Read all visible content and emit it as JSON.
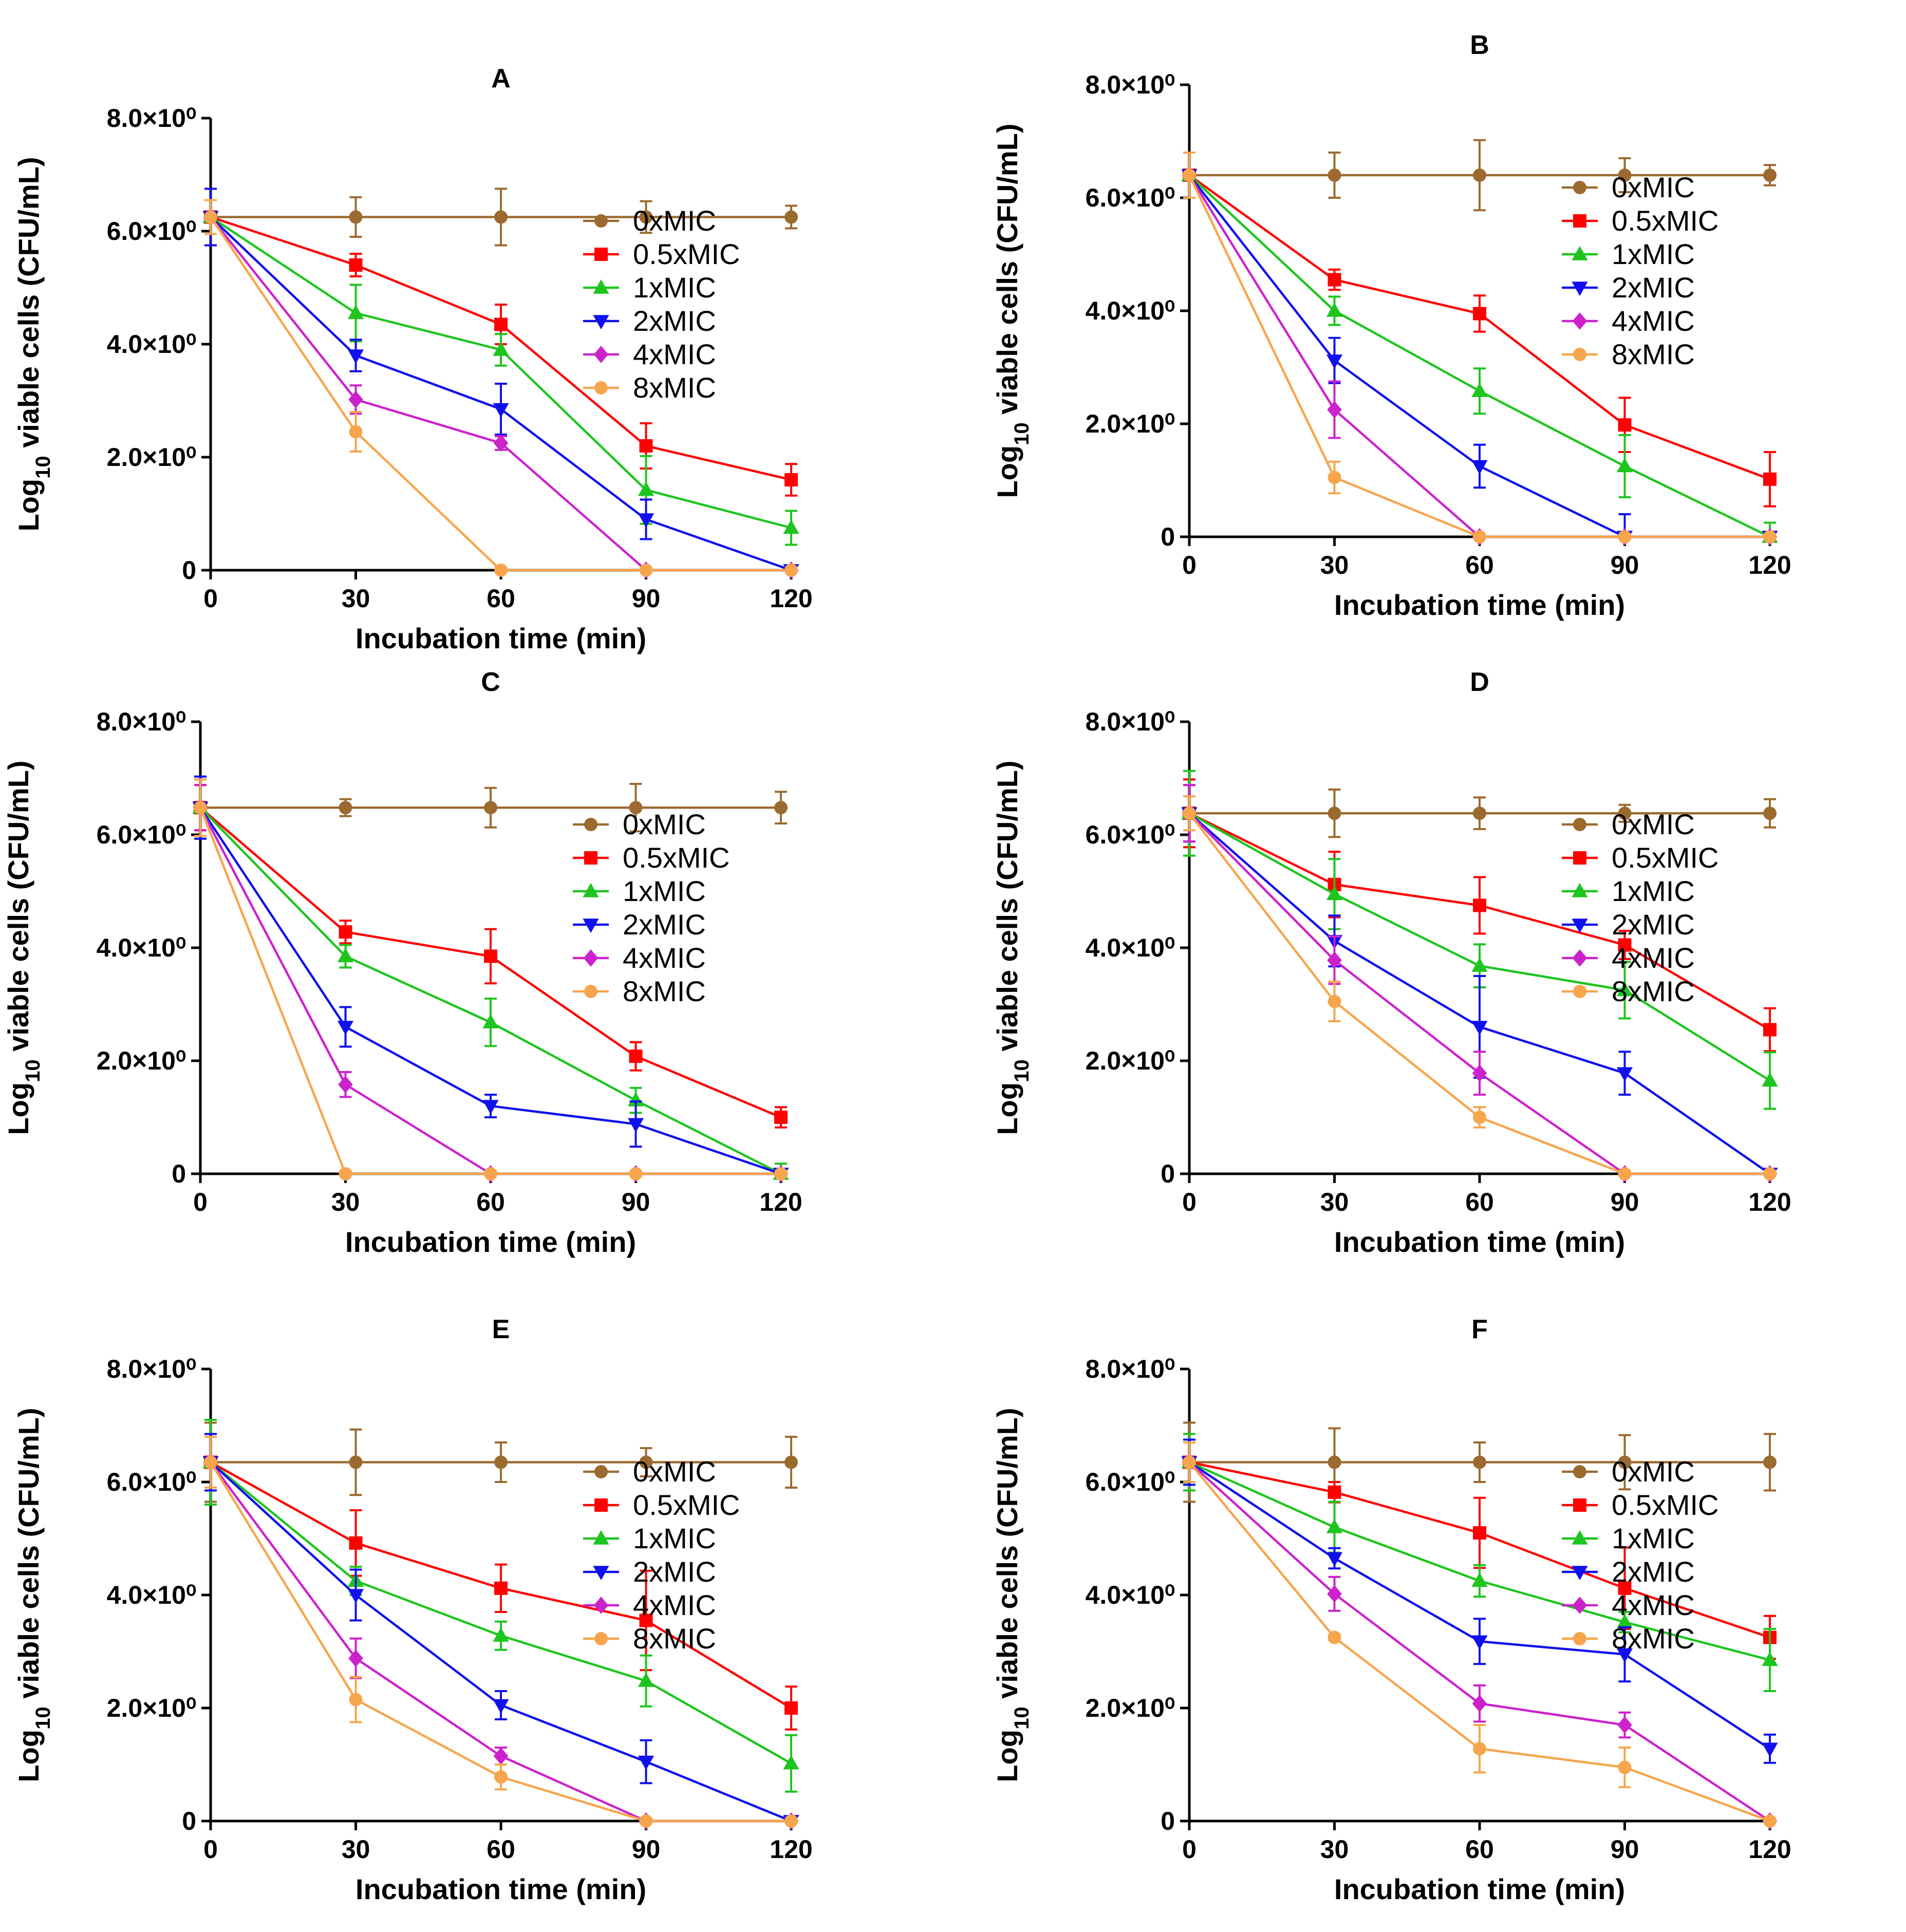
{
  "figure": {
    "background": "#ffffff"
  },
  "series_colors": {
    "0xMIC": "#9b6a2f",
    "0.5xMIC": "#ff0000",
    "1xMIC": "#1ec51e",
    "2xMIC": "#1010ee",
    "4xMIC": "#cc22cc",
    "8xMIC": "#f7a54d"
  },
  "series_markers": {
    "0xMIC": "circle",
    "0.5xMIC": "square",
    "1xMIC": "triangle-up",
    "2xMIC": "triangle-down",
    "4xMIC": "diamond",
    "8xMIC": "circle"
  },
  "chart_data": [
    {
      "type": "line",
      "title": "A",
      "xlabel": "Incubation time (min)",
      "ylabel_base": "Log",
      "ylabel_sub": "10",
      "ylabel_rest": " viable cells (CFU/mL)",
      "x": [
        0,
        30,
        60,
        90,
        120
      ],
      "x_ticks": [
        "0",
        "30",
        "60",
        "90",
        "120"
      ],
      "y_ticks": [
        {
          "value": 0,
          "label": "0"
        },
        {
          "value": 2,
          "label": "2.0×10⁰"
        },
        {
          "value": 4,
          "label": "4.0×10⁰"
        },
        {
          "value": 6,
          "label": "6.0×10⁰"
        },
        {
          "value": 8,
          "label": "8.0×10⁰"
        }
      ],
      "xlim": [
        0,
        120
      ],
      "ylim": [
        0,
        8
      ],
      "legend": "right",
      "series": [
        {
          "name": "0xMIC",
          "values": [
            6.25,
            6.25,
            6.25,
            6.25,
            6.25
          ],
          "errors": [
            0.5,
            0.35,
            0.5,
            0.28,
            0.2
          ]
        },
        {
          "name": "0.5xMIC",
          "values": [
            6.25,
            5.4,
            4.35,
            2.2,
            1.6
          ],
          "errors": [
            0.5,
            0.2,
            0.35,
            0.4,
            0.28
          ]
        },
        {
          "name": "1xMIC",
          "values": [
            6.25,
            4.55,
            3.9,
            1.42,
            0.75
          ],
          "errors": [
            0.5,
            0.5,
            0.28,
            0.6,
            0.3
          ]
        },
        {
          "name": "2xMIC",
          "values": [
            6.25,
            3.8,
            2.85,
            0.9,
            0.0
          ],
          "errors": [
            0.5,
            0.28,
            0.45,
            0.35,
            0.05
          ]
        },
        {
          "name": "4xMIC",
          "values": [
            6.25,
            3.02,
            2.25,
            0.0,
            0.0
          ],
          "errors": [
            0.3,
            0.25,
            0.12,
            0.05,
            0.05
          ]
        },
        {
          "name": "8xMIC",
          "values": [
            6.25,
            2.45,
            0.0,
            0.0,
            0.0
          ],
          "errors": [
            0.3,
            0.35,
            0.05,
            0.05,
            0.05
          ]
        }
      ]
    },
    {
      "type": "line",
      "title": "B",
      "xlabel": "Incubation time (min)",
      "ylabel_base": "Log",
      "ylabel_sub": "10",
      "ylabel_rest": " viable cells (CFU/mL)",
      "x": [
        0,
        30,
        60,
        90,
        120
      ],
      "x_ticks": [
        "0",
        "30",
        "60",
        "90",
        "120"
      ],
      "y_ticks": [
        {
          "value": 0,
          "label": "0"
        },
        {
          "value": 2,
          "label": "2.0×10⁰"
        },
        {
          "value": 4,
          "label": "4.0×10⁰"
        },
        {
          "value": 6,
          "label": "6.0×10⁰"
        },
        {
          "value": 8,
          "label": "8.0×10⁰"
        }
      ],
      "xlim": [
        0,
        120
      ],
      "ylim": [
        0,
        8
      ],
      "legend": "right",
      "series": [
        {
          "name": "0xMIC",
          "values": [
            6.4,
            6.4,
            6.4,
            6.4,
            6.4
          ],
          "errors": [
            0.4,
            0.4,
            0.62,
            0.3,
            0.18
          ]
        },
        {
          "name": "0.5xMIC",
          "values": [
            6.4,
            4.55,
            3.95,
            1.98,
            1.02
          ],
          "errors": [
            0.4,
            0.18,
            0.32,
            0.48,
            0.48
          ]
        },
        {
          "name": "1xMIC",
          "values": [
            6.4,
            4.0,
            2.58,
            1.25,
            0.0
          ],
          "errors": [
            0.4,
            0.25,
            0.4,
            0.55,
            0.25
          ]
        },
        {
          "name": "2xMIC",
          "values": [
            6.4,
            3.12,
            1.25,
            0.0,
            0.0
          ],
          "errors": [
            0.4,
            0.4,
            0.38,
            0.4,
            0.05
          ]
        },
        {
          "name": "4xMIC",
          "values": [
            6.4,
            2.25,
            0.0,
            0.0,
            0.0
          ],
          "errors": [
            0.4,
            0.5,
            0.05,
            0.05,
            0.05
          ]
        },
        {
          "name": "8xMIC",
          "values": [
            6.4,
            1.05,
            0.0,
            0.0,
            0.0
          ],
          "errors": [
            0.4,
            0.28,
            0.05,
            0.05,
            0.05
          ]
        }
      ]
    },
    {
      "type": "line",
      "title": "C",
      "xlabel": "Incubation time (min)",
      "ylabel_base": "Log",
      "ylabel_sub": "10",
      "ylabel_rest": " viable cells (CFU/mL)",
      "x": [
        0,
        30,
        60,
        90,
        120
      ],
      "x_ticks": [
        "0",
        "30",
        "60",
        "90",
        "120"
      ],
      "y_ticks": [
        {
          "value": 0,
          "label": "0"
        },
        {
          "value": 2,
          "label": "2.0×10⁰"
        },
        {
          "value": 4,
          "label": "4.0×10⁰"
        },
        {
          "value": 6,
          "label": "6.0×10⁰"
        },
        {
          "value": 8,
          "label": "8.0×10⁰"
        }
      ],
      "xlim": [
        0,
        120
      ],
      "ylim": [
        0,
        8
      ],
      "legend": "right",
      "series": [
        {
          "name": "0xMIC",
          "values": [
            6.48,
            6.48,
            6.48,
            6.48,
            6.48
          ],
          "errors": [
            0.4,
            0.15,
            0.35,
            0.42,
            0.28
          ]
        },
        {
          "name": "0.5xMIC",
          "values": [
            6.48,
            4.28,
            3.85,
            2.08,
            1.0
          ],
          "errors": [
            0.4,
            0.2,
            0.48,
            0.25,
            0.18
          ]
        },
        {
          "name": "1xMIC",
          "values": [
            6.48,
            3.85,
            2.68,
            1.3,
            0.0
          ],
          "errors": [
            0.55,
            0.2,
            0.42,
            0.22,
            0.18
          ]
        },
        {
          "name": "2xMIC",
          "values": [
            6.48,
            2.6,
            1.2,
            0.88,
            0.0
          ],
          "errors": [
            0.55,
            0.35,
            0.2,
            0.4,
            0.05
          ]
        },
        {
          "name": "4xMIC",
          "values": [
            6.48,
            1.58,
            0.0,
            0.0,
            0.0
          ],
          "errors": [
            0.4,
            0.22,
            0.05,
            0.05,
            0.05
          ]
        },
        {
          "name": "8xMIC",
          "values": [
            6.48,
            0.0,
            0.0,
            0.0,
            0.0
          ],
          "errors": [
            0.5,
            0.05,
            0.05,
            0.05,
            0.05
          ]
        }
      ]
    },
    {
      "type": "line",
      "title": "D",
      "xlabel": "Incubation time (min)",
      "ylabel_base": "Log",
      "ylabel_sub": "10",
      "ylabel_rest": " viable cells (CFU/mL)",
      "x": [
        0,
        30,
        60,
        90,
        120
      ],
      "x_ticks": [
        "0",
        "30",
        "60",
        "90",
        "120"
      ],
      "y_ticks": [
        {
          "value": 0,
          "label": "0"
        },
        {
          "value": 2,
          "label": "2.0×10⁰"
        },
        {
          "value": 4,
          "label": "4.0×10⁰"
        },
        {
          "value": 6,
          "label": "6.0×10⁰"
        },
        {
          "value": 8,
          "label": "8.0×10⁰"
        }
      ],
      "xlim": [
        0,
        120
      ],
      "ylim": [
        0,
        8
      ],
      "legend": "right",
      "series": [
        {
          "name": "0xMIC",
          "values": [
            6.38,
            6.38,
            6.38,
            6.38,
            6.38
          ],
          "errors": [
            0.6,
            0.42,
            0.28,
            0.15,
            0.25
          ]
        },
        {
          "name": "0.5xMIC",
          "values": [
            6.38,
            5.12,
            4.75,
            4.05,
            2.55
          ],
          "errors": [
            0.6,
            0.58,
            0.5,
            0.25,
            0.38
          ]
        },
        {
          "name": "1xMIC",
          "values": [
            6.38,
            4.95,
            3.68,
            3.25,
            1.65
          ],
          "errors": [
            0.75,
            0.62,
            0.38,
            0.5,
            0.5
          ]
        },
        {
          "name": "2xMIC",
          "values": [
            6.38,
            4.12,
            2.6,
            1.78,
            0.0
          ],
          "errors": [
            0.5,
            0.45,
            0.9,
            0.38,
            0.05
          ]
        },
        {
          "name": "4xMIC",
          "values": [
            6.38,
            3.78,
            1.78,
            0.0,
            0.0
          ],
          "errors": [
            0.5,
            0.42,
            0.38,
            0.05,
            0.05
          ]
        },
        {
          "name": "8xMIC",
          "values": [
            6.38,
            3.05,
            1.0,
            0.0,
            0.0
          ],
          "errors": [
            0.3,
            0.35,
            0.18,
            0.05,
            0.05
          ]
        }
      ]
    },
    {
      "type": "line",
      "title": "E",
      "xlabel": "Incubation time (min)",
      "ylabel_base": "Log",
      "ylabel_sub": "10",
      "ylabel_rest": " viable cells (CFU/mL)",
      "x": [
        0,
        30,
        60,
        90,
        120
      ],
      "x_ticks": [
        "0",
        "30",
        "60",
        "90",
        "120"
      ],
      "y_ticks": [
        {
          "value": 0,
          "label": "0"
        },
        {
          "value": 2,
          "label": "2.0×10⁰"
        },
        {
          "value": 4,
          "label": "4.0×10⁰"
        },
        {
          "value": 6,
          "label": "6.0×10⁰"
        },
        {
          "value": 8,
          "label": "8.0×10⁰"
        }
      ],
      "xlim": [
        0,
        120
      ],
      "ylim": [
        0,
        8
      ],
      "legend": "right",
      "series": [
        {
          "name": "0xMIC",
          "values": [
            6.35,
            6.35,
            6.35,
            6.35,
            6.35
          ],
          "errors": [
            0.7,
            0.58,
            0.35,
            0.25,
            0.45
          ]
        },
        {
          "name": "0.5xMIC",
          "values": [
            6.35,
            4.92,
            4.12,
            3.55,
            2.0
          ],
          "errors": [
            0.5,
            0.58,
            0.42,
            0.88,
            0.38
          ]
        },
        {
          "name": "1xMIC",
          "values": [
            6.35,
            4.25,
            3.28,
            2.48,
            1.02
          ],
          "errors": [
            0.75,
            0.25,
            0.25,
            0.45,
            0.5
          ]
        },
        {
          "name": "2xMIC",
          "values": [
            6.35,
            4.0,
            2.05,
            1.05,
            0.0
          ],
          "errors": [
            0.5,
            0.45,
            0.25,
            0.38,
            0.05
          ]
        },
        {
          "name": "4xMIC",
          "values": [
            6.35,
            2.88,
            1.15,
            0.0,
            0.0
          ],
          "errors": [
            0.45,
            0.35,
            0.15,
            0.05,
            0.05
          ]
        },
        {
          "name": "8xMIC",
          "values": [
            6.35,
            2.15,
            0.78,
            0.0,
            0.0
          ],
          "errors": [
            0.45,
            0.4,
            0.22,
            0.05,
            0.05
          ]
        }
      ]
    },
    {
      "type": "line",
      "title": "F",
      "xlabel": "Incubation time (min)",
      "ylabel_base": "Log",
      "ylabel_sub": "10",
      "ylabel_rest": " viable cells (CFU/mL)",
      "x": [
        0,
        30,
        60,
        90,
        120
      ],
      "x_ticks": [
        "0",
        "30",
        "60",
        "90",
        "120"
      ],
      "y_ticks": [
        {
          "value": 0,
          "label": "0"
        },
        {
          "value": 2,
          "label": "2.0×10⁰"
        },
        {
          "value": 4,
          "label": "4.0×10⁰"
        },
        {
          "value": 6,
          "label": "6.0×10⁰"
        },
        {
          "value": 8,
          "label": "8.0×10⁰"
        }
      ],
      "xlim": [
        0,
        120
      ],
      "ylim": [
        0,
        8
      ],
      "legend": "right",
      "series": [
        {
          "name": "0xMIC",
          "values": [
            6.35,
            6.35,
            6.35,
            6.35,
            6.35
          ],
          "errors": [
            0.7,
            0.6,
            0.35,
            0.48,
            0.5
          ]
        },
        {
          "name": "0.5xMIC",
          "values": [
            6.35,
            5.82,
            5.1,
            4.12,
            3.25
          ],
          "errors": [
            0.5,
            0.18,
            0.62,
            0.72,
            0.38
          ]
        },
        {
          "name": "1xMIC",
          "values": [
            6.35,
            5.2,
            4.25,
            3.52,
            2.85
          ],
          "errors": [
            0.5,
            0.45,
            0.28,
            0.18,
            0.55
          ]
        },
        {
          "name": "2xMIC",
          "values": [
            6.35,
            4.65,
            3.18,
            2.95,
            1.28
          ],
          "errors": [
            0.4,
            0.18,
            0.4,
            0.48,
            0.25
          ]
        },
        {
          "name": "4xMIC",
          "values": [
            6.35,
            4.02,
            2.08,
            1.7,
            0.0
          ],
          "errors": [
            0.35,
            0.3,
            0.32,
            0.22,
            0.05
          ]
        },
        {
          "name": "8xMIC",
          "values": [
            6.35,
            3.25,
            1.28,
            0.95,
            0.0
          ],
          "errors": [
            0.35,
            0.05,
            0.42,
            0.35,
            0.05
          ]
        }
      ]
    }
  ]
}
